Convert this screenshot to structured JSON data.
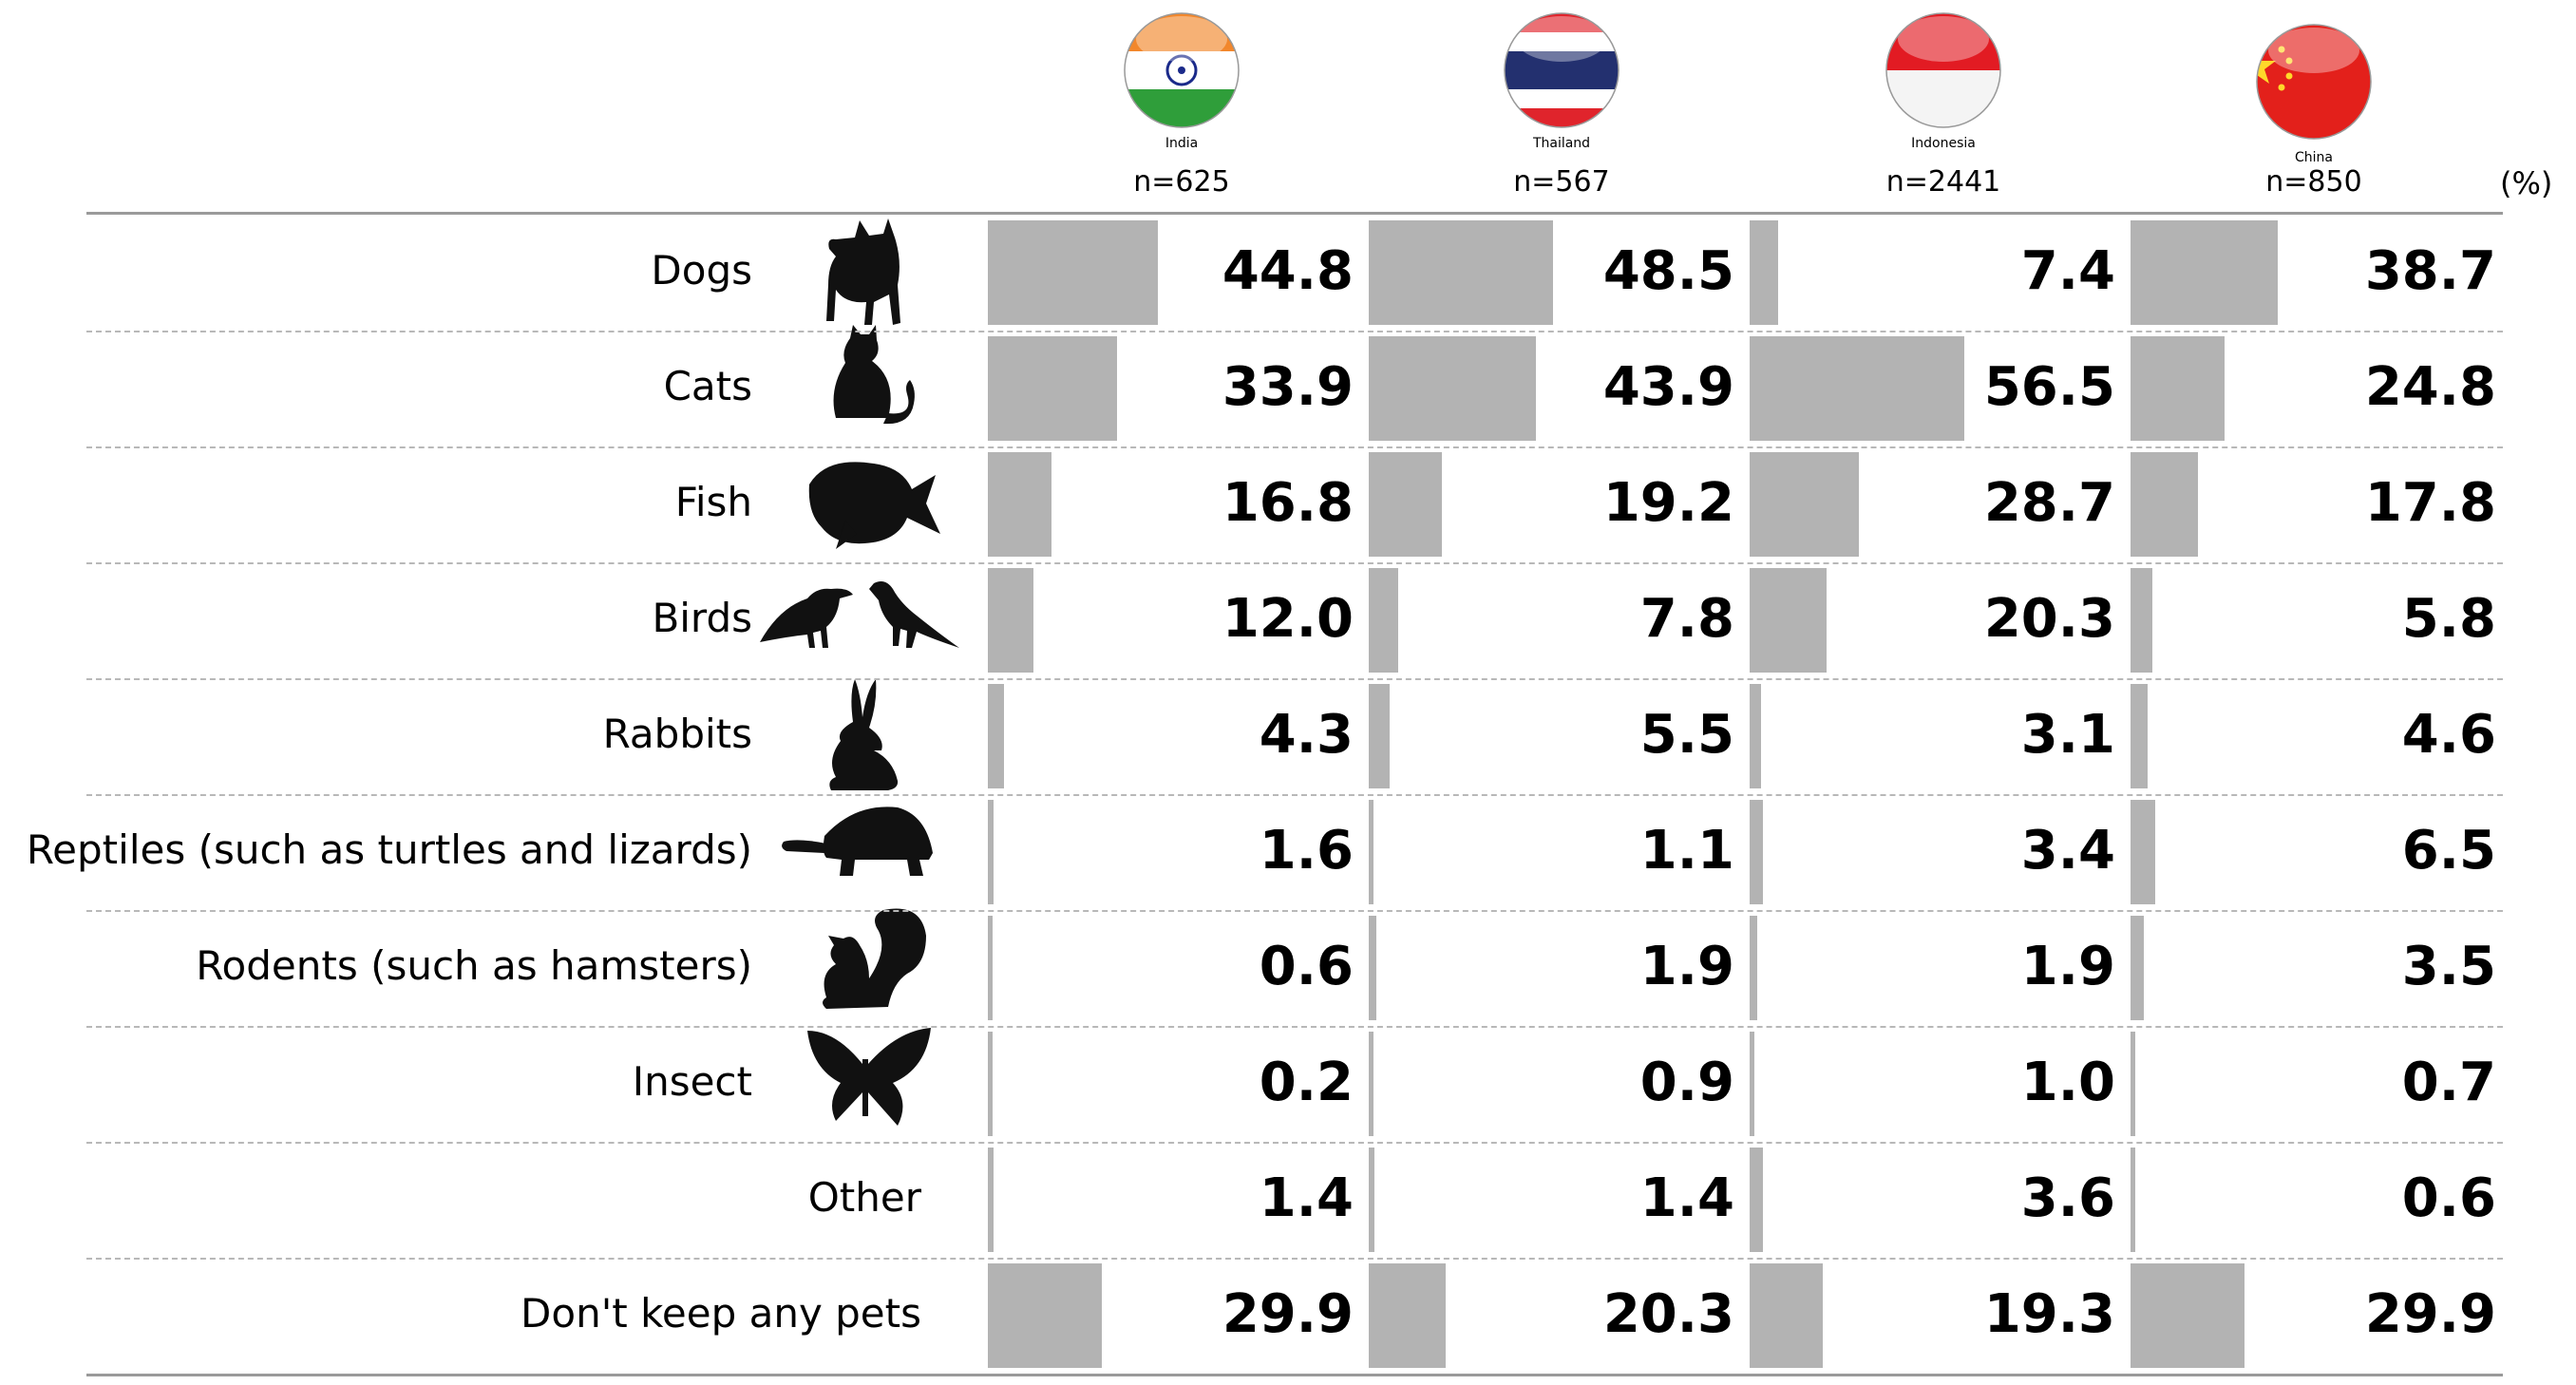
{
  "chart_data": {
    "type": "bar",
    "unit": "(%)",
    "series": [
      {
        "name": "India",
        "n": "n=625",
        "values": [
          44.8,
          33.9,
          16.8,
          12.0,
          4.3,
          1.6,
          0.6,
          0.2,
          1.4,
          29.9
        ],
        "labels": [
          "44.8",
          "33.9",
          "16.8",
          "12.0",
          "4.3",
          "1.6",
          "0.6",
          "0.2",
          "1.4",
          "29.9"
        ]
      },
      {
        "name": "Thailand",
        "n": "n=567",
        "values": [
          48.5,
          43.9,
          19.2,
          7.8,
          5.5,
          1.1,
          1.9,
          0.9,
          1.4,
          20.3
        ],
        "labels": [
          "48.5",
          "43.9",
          "19.2",
          "7.8",
          "5.5",
          "1.1",
          "1.9",
          "0.9",
          "1.4",
          "20.3"
        ]
      },
      {
        "name": "Indonesia",
        "n": "n=2441",
        "values": [
          7.4,
          56.5,
          28.7,
          20.3,
          3.1,
          3.4,
          1.9,
          1.0,
          3.6,
          19.3
        ],
        "labels": [
          "7.4",
          "56.5",
          "28.7",
          "20.3",
          "3.1",
          "3.4",
          "1.9",
          "1.0",
          "3.6",
          "19.3"
        ]
      },
      {
        "name": "China",
        "n": "n=850",
        "values": [
          38.7,
          24.8,
          17.8,
          5.8,
          4.6,
          6.5,
          3.5,
          0.7,
          0.6,
          29.9
        ],
        "labels": [
          "38.7",
          "24.8",
          "17.8",
          "5.8",
          "4.6",
          "6.5",
          "3.5",
          "0.7",
          "0.6",
          "29.9"
        ]
      }
    ],
    "categories": [
      "Dogs",
      "Cats",
      "Fish",
      "Birds",
      "Rabbits",
      "Reptiles (such as turtles and lizards)",
      "Rodents (such as hamsters)",
      "Insect",
      "Other",
      "Don't keep any pets"
    ],
    "category_icons": [
      "dog-icon",
      "cat-icon",
      "fish-icon",
      "birds-icon",
      "rabbit-icon",
      "turtle-icon",
      "squirrel-icon",
      "butterfly-icon",
      "",
      ""
    ],
    "bar_color": "#b3b3b3",
    "flag_icons": [
      "india-flag-icon",
      "thailand-flag-icon",
      "indonesia-flag-icon",
      "china-flag-icon"
    ]
  }
}
